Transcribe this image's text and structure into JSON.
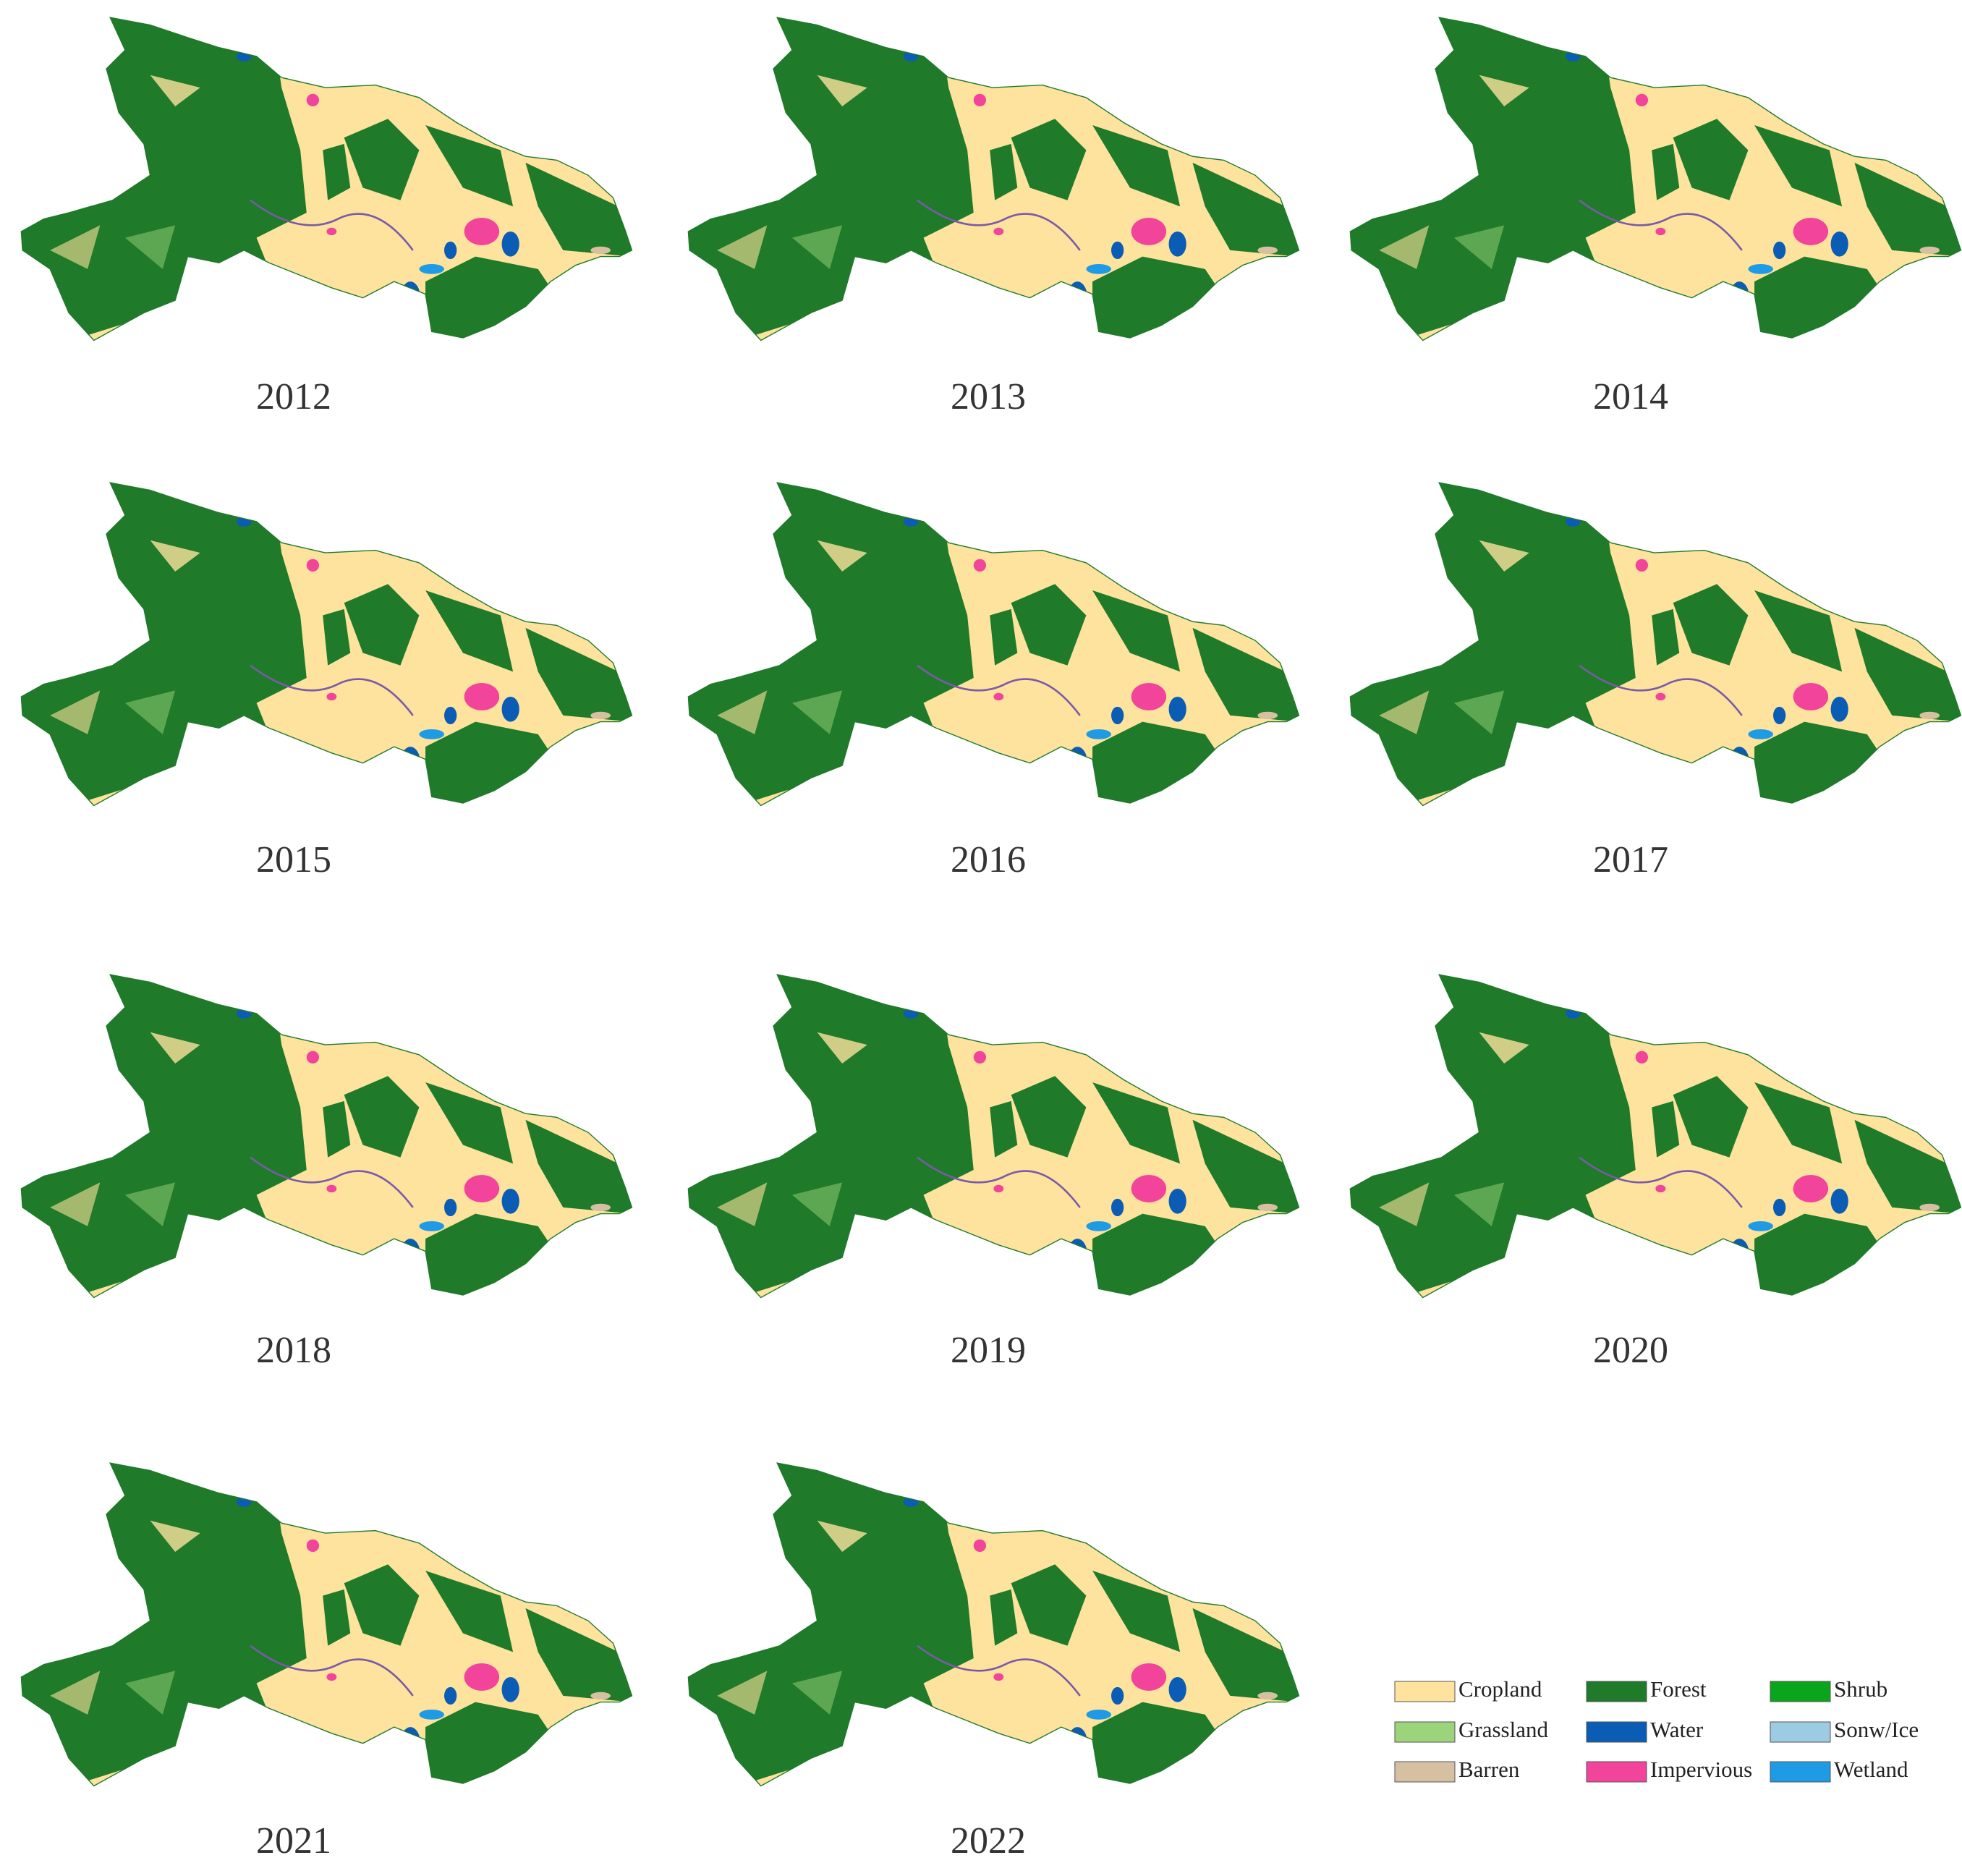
{
  "maps": [
    {
      "year": "2012"
    },
    {
      "year": "2013"
    },
    {
      "year": "2014"
    },
    {
      "year": "2015"
    },
    {
      "year": "2016"
    },
    {
      "year": "2017"
    },
    {
      "year": "2018"
    },
    {
      "year": "2019"
    },
    {
      "year": "2020"
    },
    {
      "year": "2021"
    },
    {
      "year": "2022"
    }
  ],
  "legend": [
    {
      "label": "Cropland",
      "color": "#fde39d"
    },
    {
      "label": "Forest",
      "color": "#1f7a2a"
    },
    {
      "label": "Shrub",
      "color": "#0aa51c"
    },
    {
      "label": "Grassland",
      "color": "#9bd47a"
    },
    {
      "label": "Water",
      "color": "#0a5cb4"
    },
    {
      "label": "Sonw/Ice",
      "color": "#9ccbe3"
    },
    {
      "label": "Barren",
      "color": "#d6c0a2"
    },
    {
      "label": "Impervious",
      "color": "#f2449a"
    },
    {
      "label": "Wetland",
      "color": "#1f9be6"
    }
  ]
}
